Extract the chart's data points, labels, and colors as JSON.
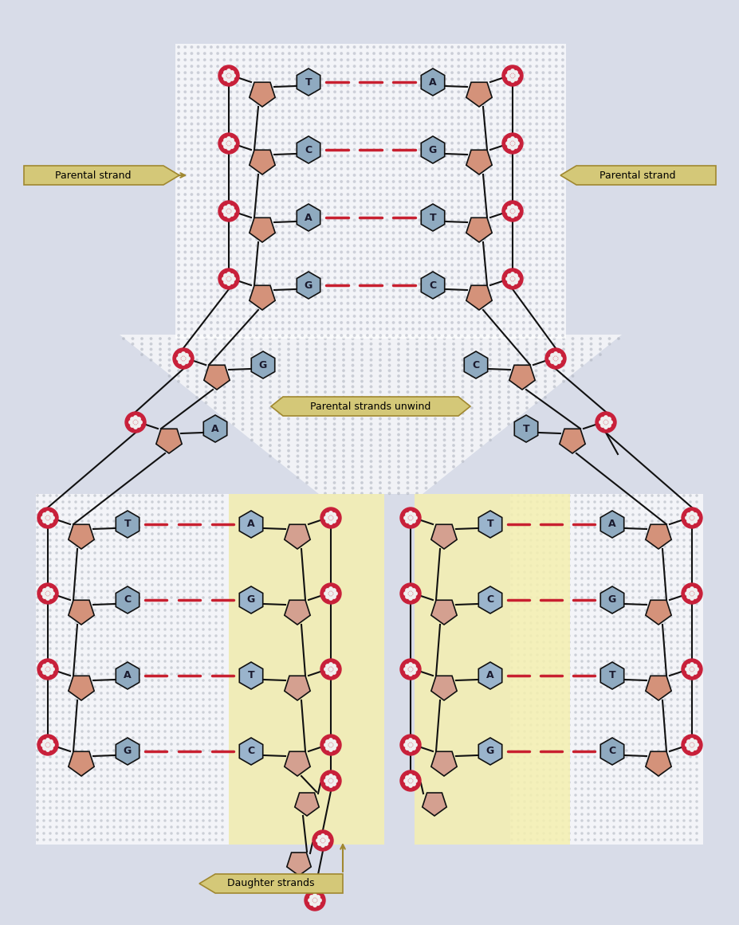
{
  "bg_color": "#d8dce8",
  "dotted_bg": "#e8e8e8",
  "yellow_bg": "#f5f0b0",
  "sugar_color": "#d4927a",
  "base_blue_color": "#8faac0",
  "base_blue_dark": "#7090a8",
  "phosphate_color": "#c8203a",
  "phosphate_dot": "#f0f0f0",
  "arrow_color": "#d4c878",
  "arrow_edge": "#a08830",
  "line_color": "#111111",
  "dashed_color": "#c82030",
  "pairs_top": [
    {
      "left": "T",
      "right": "A"
    },
    {
      "left": "C",
      "right": "G"
    },
    {
      "left": "A",
      "right": "T"
    },
    {
      "left": "G",
      "right": "C"
    }
  ],
  "pairs_bottom_left": [
    {
      "left": "T",
      "right": "A"
    },
    {
      "left": "C",
      "right": "G"
    },
    {
      "left": "A",
      "right": "T"
    },
    {
      "left": "G",
      "right": "C"
    }
  ],
  "pairs_bottom_right": [
    {
      "left": "T",
      "right": "A"
    },
    {
      "left": "C",
      "right": "G"
    },
    {
      "left": "A",
      "right": "T"
    },
    {
      "left": "G",
      "right": "C"
    }
  ],
  "label_parental_left": "Parental strand",
  "label_parental_right": "Parental strand",
  "label_unwind": "Parental strands unwind",
  "label_daughter": "Daughter strands"
}
